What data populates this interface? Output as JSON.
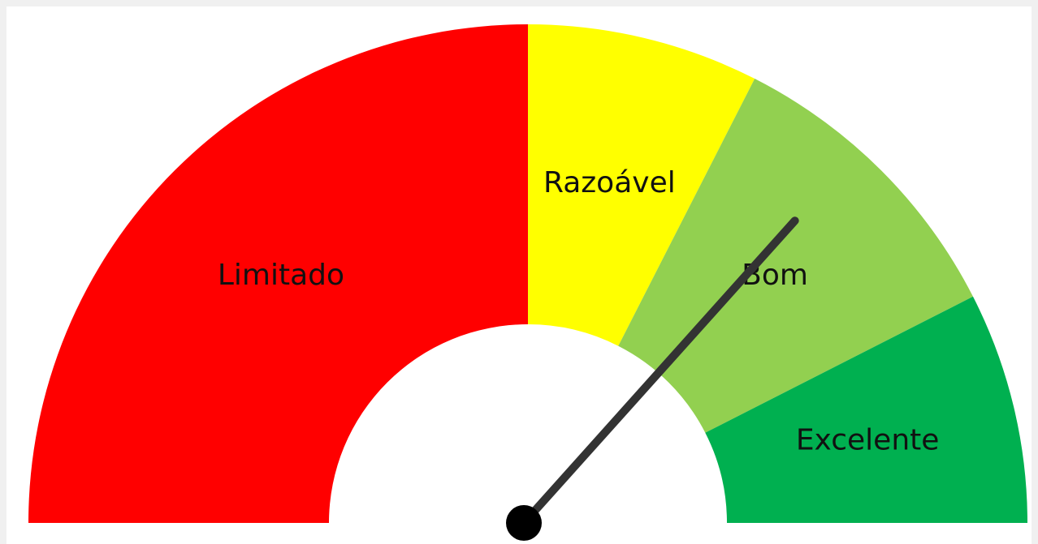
{
  "chart_data": {
    "type": "gauge",
    "categories": [
      "Limitado",
      "Razoável",
      "Bom",
      "Excelente"
    ],
    "values": [
      50,
      15,
      20,
      15
    ],
    "colors": [
      "#ff0000",
      "#ffff00",
      "#92d050",
      "#00b050"
    ],
    "lim": [
      0,
      100
    ],
    "needle": 73
  }
}
